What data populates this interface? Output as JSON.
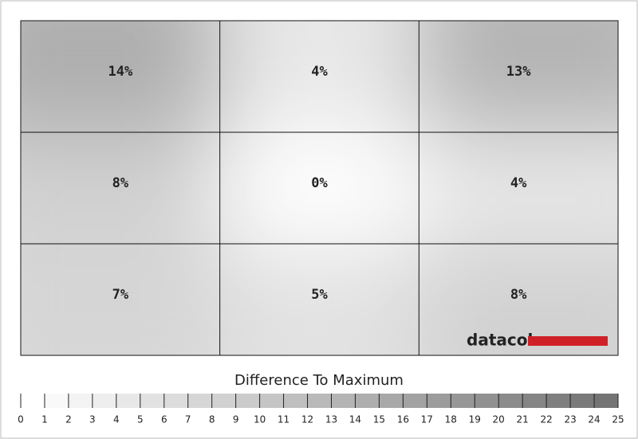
{
  "chart_data": {
    "type": "heatmap",
    "rows": 3,
    "columns": 3,
    "values": [
      [
        14,
        4,
        13
      ],
      [
        8,
        0,
        4
      ],
      [
        7,
        5,
        8
      ]
    ],
    "value_labels": [
      [
        "14%",
        "4%",
        "13%"
      ],
      [
        "8%",
        "0%",
        "4%"
      ],
      [
        "7%",
        "5%",
        "8%"
      ]
    ],
    "colorbar_title": "Difference To Maximum",
    "colorbar_lim": [
      0,
      25
    ],
    "colorbar_ticks": [
      0,
      1,
      2,
      3,
      4,
      5,
      6,
      7,
      8,
      9,
      10,
      11,
      12,
      13,
      14,
      15,
      16,
      17,
      18,
      19,
      20,
      21,
      22,
      23,
      24,
      25
    ],
    "color_low": "#ffffff",
    "color_high": "#6e6e6e",
    "brand": "datacolor"
  }
}
